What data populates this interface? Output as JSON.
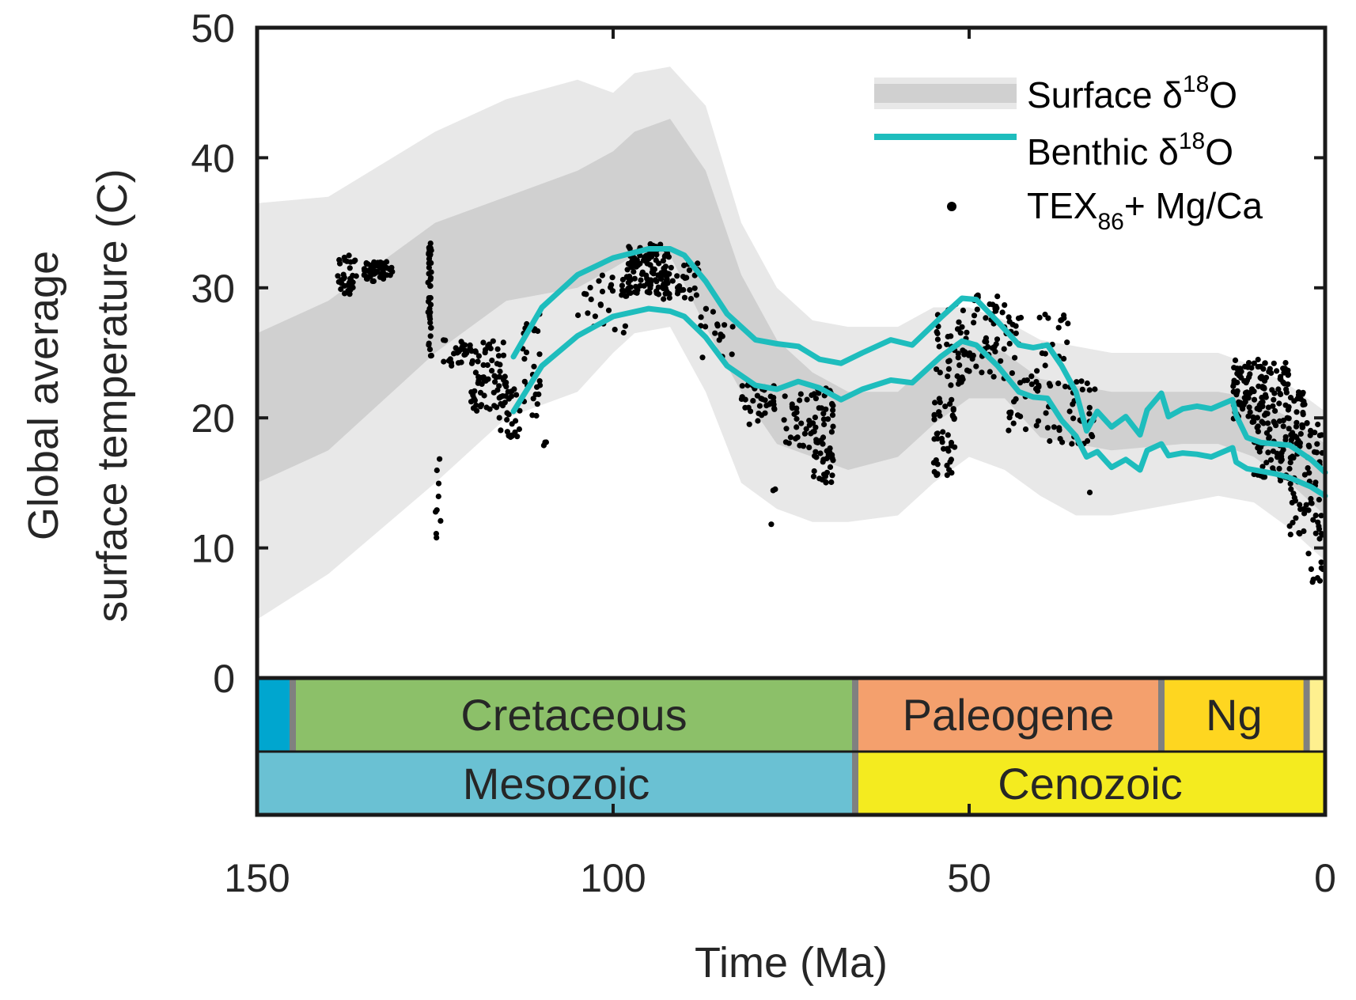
{
  "chart_data": {
    "type": "line",
    "xlabel": "Time (Ma)",
    "ylabel_line1": "Global average",
    "ylabel_line2": "surface temperature (C)",
    "xlim": [
      150,
      0
    ],
    "ylim": [
      0,
      50
    ],
    "x_ticks": [
      "150",
      "100",
      "50",
      "0"
    ],
    "y_ticks": [
      "50",
      "40",
      "30",
      "20",
      "10",
      "0"
    ],
    "legend_position": "top-right",
    "legend": {
      "surface_label": "Surface δ",
      "surface_sup": "18",
      "surface_suffix": "O",
      "benthic_label": "Benthic δ",
      "benthic_sup": "18",
      "benthic_suffix": "O",
      "tex_label": "TEX",
      "tex_sub": "86",
      "tex_suffix": "+ Mg/Ca"
    },
    "colors": {
      "band_outer": "#e8e8e8",
      "band_inner": "#d0d0d0",
      "benthic": "#1ebdbd",
      "points": "#000000",
      "triassic_jurassic": "#00a6cf",
      "cretaceous": "#8cc069",
      "paleogene": "#f4a06d",
      "neogene": "#fed620",
      "quaternary": "#fef08f",
      "mesozoic": "#6ac1d3",
      "cenozoic": "#f4eb1f",
      "divider": "#808080"
    },
    "surface_band": {
      "x": [
        150,
        140,
        125,
        115,
        105,
        100,
        97,
        92,
        87,
        82,
        77,
        72,
        67,
        60,
        55,
        50,
        45,
        40,
        35,
        30,
        20,
        15,
        10,
        5,
        0
      ],
      "outer_upper": [
        36.5,
        37,
        42,
        44.5,
        46,
        45,
        46.5,
        47,
        44,
        35,
        30,
        27.5,
        27,
        27,
        28.5,
        28.5,
        27.5,
        26,
        25.5,
        25,
        25,
        25,
        24,
        22.5,
        20.5
      ],
      "inner_upper": [
        26.5,
        29,
        35,
        37,
        39,
        40.5,
        42,
        43,
        39,
        31,
        26,
        23.5,
        22,
        22,
        24.5,
        26,
        25,
        23,
        22.5,
        22,
        22,
        22,
        21.5,
        20,
        18
      ],
      "inner_lower": [
        15,
        17.5,
        25,
        29,
        30,
        31.5,
        32.5,
        32.5,
        27,
        22,
        18,
        17,
        16,
        17,
        19.5,
        21.5,
        21.5,
        18.5,
        18,
        17.5,
        18,
        18,
        17,
        15,
        12.5
      ],
      "outer_lower": [
        4.5,
        8,
        15,
        20,
        22,
        25,
        26.5,
        27,
        22,
        15,
        13,
        12,
        12,
        12.5,
        15,
        17,
        16,
        14,
        12.5,
        12.5,
        13.5,
        14,
        13.5,
        11.5,
        9
      ]
    },
    "series": [
      {
        "name": "Benthic δ18O",
        "x": [
          114,
          110,
          105,
          100,
          95,
          92,
          90,
          87,
          84,
          80,
          77,
          74,
          71,
          68,
          65,
          61,
          58,
          54,
          51,
          49,
          46,
          43,
          41,
          39,
          37,
          35,
          33.5,
          32,
          30,
          28,
          26,
          25,
          23,
          22,
          20,
          18,
          16,
          13,
          12.5,
          11,
          9,
          7,
          5,
          2,
          0
        ],
        "upper": [
          24.7,
          28.5,
          31,
          32.3,
          33,
          33,
          32.5,
          30.5,
          28,
          26,
          25.7,
          25.5,
          24.5,
          24.2,
          25,
          26,
          25.6,
          27.7,
          29.2,
          29.1,
          27.4,
          25.6,
          25.4,
          25.6,
          24,
          22,
          19,
          20.5,
          19.3,
          20.1,
          18.7,
          20.6,
          21.9,
          20.1,
          20.7,
          20.9,
          20.7,
          21.4,
          20.2,
          18.5,
          18.1,
          18,
          17.9,
          16.8,
          15.8
        ],
        "lower": [
          20.5,
          24,
          26.3,
          27.8,
          28.4,
          28.2,
          27.8,
          26.2,
          24,
          22.5,
          22.2,
          22.8,
          22.3,
          21.4,
          22.2,
          22.9,
          22.7,
          24.7,
          25.9,
          25.6,
          24,
          22,
          21.6,
          21.5,
          19.8,
          18.6,
          17,
          17.4,
          16.2,
          16.8,
          16,
          17.5,
          18,
          17.1,
          17.3,
          17.2,
          17,
          17.7,
          16.6,
          16.1,
          15.9,
          15.7,
          15.4,
          14.7,
          14
        ]
      }
    ],
    "point_clusters": [
      {
        "x0": 139,
        "x1": 136,
        "y0": 29.5,
        "y1": 32.5,
        "n": 35
      },
      {
        "x0": 135,
        "x1": 131,
        "y0": 30.5,
        "y1": 32,
        "n": 55
      },
      {
        "x0": 126,
        "x1": 125.5,
        "y0": 24.5,
        "y1": 33.5,
        "n": 40
      },
      {
        "x0": 125,
        "x1": 124,
        "y0": 10.5,
        "y1": 17.5,
        "n": 9
      },
      {
        "x0": 124,
        "x1": 120,
        "y0": 24,
        "y1": 26,
        "n": 25
      },
      {
        "x0": 120,
        "x1": 115,
        "y0": 20.5,
        "y1": 26,
        "n": 70
      },
      {
        "x0": 116,
        "x1": 113,
        "y0": 18.5,
        "y1": 22.5,
        "n": 25
      },
      {
        "x0": 113,
        "x1": 110,
        "y0": 20,
        "y1": 28,
        "n": 25
      },
      {
        "x0": 110,
        "x1": 109,
        "y0": 17.5,
        "y1": 19,
        "n": 3
      },
      {
        "x0": 105,
        "x1": 98,
        "y0": 26.5,
        "y1": 31,
        "n": 30
      },
      {
        "x0": 98,
        "x1": 92,
        "y0": 29.5,
        "y1": 33.5,
        "n": 120
      },
      {
        "x0": 93,
        "x1": 88,
        "y0": 29,
        "y1": 32,
        "n": 30
      },
      {
        "x0": 88,
        "x1": 83,
        "y0": 24.5,
        "y1": 28.5,
        "n": 18
      },
      {
        "x0": 82,
        "x1": 77,
        "y0": 19.5,
        "y1": 23,
        "n": 35
      },
      {
        "x0": 78,
        "x1": 76,
        "y0": 11.5,
        "y1": 15,
        "n": 3
      },
      {
        "x0": 76,
        "x1": 72,
        "y0": 17.5,
        "y1": 22,
        "n": 30
      },
      {
        "x0": 72,
        "x1": 69,
        "y0": 15,
        "y1": 22.5,
        "n": 60
      },
      {
        "x0": 55,
        "x1": 52,
        "y0": 15.5,
        "y1": 21.5,
        "n": 45
      },
      {
        "x0": 55,
        "x1": 50,
        "y0": 22.5,
        "y1": 29,
        "n": 40
      },
      {
        "x0": 51,
        "x1": 45,
        "y0": 23,
        "y1": 30,
        "n": 50
      },
      {
        "x0": 45,
        "x1": 40,
        "y0": 19,
        "y1": 29,
        "n": 40
      },
      {
        "x0": 40,
        "x1": 36,
        "y0": 18,
        "y1": 28,
        "n": 30
      },
      {
        "x0": 36,
        "x1": 32,
        "y0": 18,
        "y1": 23,
        "n": 25
      },
      {
        "x0": 34,
        "x1": 33,
        "y0": 14,
        "y1": 14.5,
        "n": 1
      },
      {
        "x0": 13,
        "x1": 5,
        "y0": 19.5,
        "y1": 24.5,
        "n": 130
      },
      {
        "x0": 10,
        "x1": 5,
        "y0": 15,
        "y1": 20,
        "n": 50
      },
      {
        "x0": 5,
        "x1": 2.5,
        "y0": 11,
        "y1": 22,
        "n": 60
      },
      {
        "x0": 2.5,
        "x1": 0.3,
        "y0": 7,
        "y1": 19.5,
        "n": 45
      }
    ],
    "timescale": {
      "periods": [
        {
          "label": "",
          "from": 150,
          "to": 145,
          "color_key": "triassic_jurassic"
        },
        {
          "label": "Cretaceous",
          "from": 145,
          "to": 66,
          "color_key": "cretaceous"
        },
        {
          "label": "Paleogene",
          "from": 66,
          "to": 23,
          "color_key": "paleogene"
        },
        {
          "label": "Ng",
          "from": 23,
          "to": 2.6,
          "color_key": "neogene"
        },
        {
          "label": "",
          "from": 2.6,
          "to": 0,
          "color_key": "quaternary"
        }
      ],
      "eras": [
        {
          "label": "Mesozoic",
          "from": 150,
          "to": 66,
          "color_key": "mesozoic"
        },
        {
          "label": "Cenozoic",
          "from": 66,
          "to": 0,
          "color_key": "cenozoic"
        }
      ]
    }
  }
}
